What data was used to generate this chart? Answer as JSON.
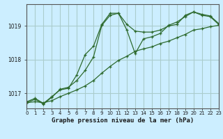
{
  "background_color": "#cceeff",
  "grid_color": "#aacccc",
  "line_color": "#2d6a2d",
  "xlabel": "Graphe pression niveau de la mer (hPa)",
  "xlim": [
    0,
    23
  ],
  "ylim": [
    1016.55,
    1019.65
  ],
  "yticks": [
    1017,
    1018,
    1019
  ],
  "xticks": [
    0,
    1,
    2,
    3,
    4,
    5,
    6,
    7,
    8,
    9,
    10,
    11,
    12,
    13,
    14,
    15,
    16,
    17,
    18,
    19,
    20,
    21,
    22,
    23
  ],
  "series": [
    {
      "x": [
        0,
        1,
        2,
        3,
        4,
        5,
        6,
        7,
        8,
        9,
        10,
        11,
        12,
        13,
        14,
        15,
        16,
        17,
        18,
        19,
        20,
        21,
        22,
        23
      ],
      "y": [
        1016.75,
        1016.85,
        1016.7,
        1016.9,
        1017.1,
        1017.15,
        1017.55,
        1018.15,
        1018.4,
        1019.05,
        1019.38,
        1019.38,
        1019.05,
        1018.85,
        1018.82,
        1018.82,
        1018.88,
        1019.0,
        1019.05,
        1019.32,
        1019.42,
        1019.32,
        1019.28,
        1019.05
      ]
    },
    {
      "x": [
        0,
        1,
        2,
        3,
        4,
        5,
        6,
        7,
        8,
        9,
        10,
        11,
        12,
        13,
        14,
        15,
        16,
        17,
        18,
        19,
        20,
        21,
        22,
        23
      ],
      "y": [
        1016.72,
        1016.75,
        1016.72,
        1016.78,
        1016.9,
        1017.0,
        1017.1,
        1017.22,
        1017.38,
        1017.6,
        1017.8,
        1017.98,
        1018.1,
        1018.25,
        1018.32,
        1018.38,
        1018.48,
        1018.55,
        1018.65,
        1018.75,
        1018.88,
        1018.92,
        1018.98,
        1019.02
      ]
    },
    {
      "x": [
        0,
        1,
        2,
        3,
        4,
        5,
        6,
        7,
        8,
        9,
        10,
        11,
        12,
        13,
        14,
        15,
        16,
        17,
        18,
        19,
        20,
        21,
        22,
        23
      ],
      "y": [
        1016.72,
        1016.82,
        1016.68,
        1016.88,
        1017.12,
        1017.18,
        1017.38,
        1017.68,
        1018.08,
        1019.02,
        1019.32,
        1019.38,
        1018.88,
        1018.18,
        1018.62,
        1018.68,
        1018.78,
        1019.02,
        1019.12,
        1019.28,
        1019.42,
        1019.35,
        1019.3,
        1019.08
      ]
    }
  ]
}
